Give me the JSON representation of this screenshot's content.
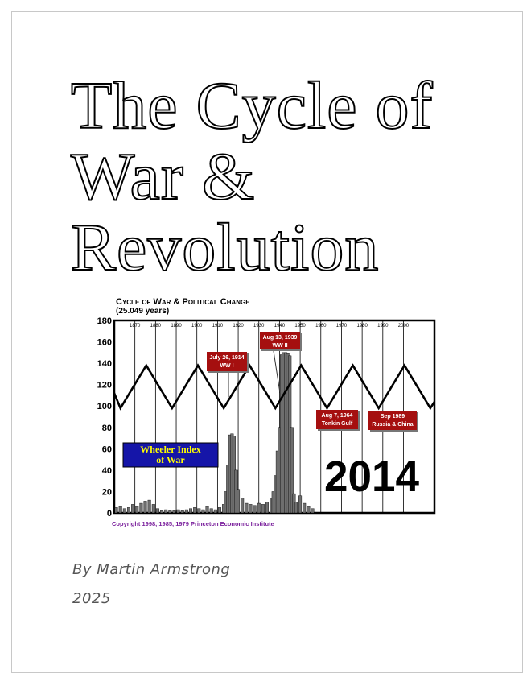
{
  "document": {
    "title_lines": [
      "The Cycle of",
      "War &",
      "Revolution"
    ],
    "author": "By Martin Armstrong",
    "year": "2025"
  },
  "chart_data": {
    "type": "area",
    "title": "Cycle of War & Political Change",
    "subtitle": "(25.049 years)",
    "ylim": [
      0,
      180
    ],
    "y_ticks": [
      0,
      20,
      40,
      60,
      80,
      100,
      120,
      140,
      160,
      180
    ],
    "xlim": [
      1860,
      2015
    ],
    "x_ticks": [
      "1870",
      "1880",
      "1890",
      "1900",
      "1910",
      "1920",
      "1930",
      "1940",
      "1950",
      "1960",
      "1970",
      "1980",
      "1990",
      "2000"
    ],
    "x_tick_years": [
      1870,
      1880,
      1890,
      1900,
      1910,
      1920,
      1930,
      1940,
      1950,
      1960,
      1970,
      1980,
      1990,
      2000
    ],
    "cycle_series": {
      "x": [
        1860,
        1863,
        1875.5,
        1888,
        1900.5,
        1913,
        1925.5,
        1938,
        1950.5,
        1963,
        1975.5,
        1988,
        2000.5,
        2013,
        2015
      ],
      "y": [
        112,
        98,
        138,
        98,
        138,
        98,
        138,
        98,
        138,
        98,
        138,
        98,
        138,
        98,
        104
      ]
    },
    "war_index": {
      "x": [
        1861,
        1863,
        1865,
        1867,
        1869,
        1871,
        1873,
        1875,
        1877,
        1879,
        1881,
        1883,
        1885,
        1887,
        1889,
        1891,
        1893,
        1895,
        1897,
        1899,
        1901,
        1903,
        1905,
        1907,
        1909,
        1911,
        1913,
        1914,
        1915,
        1916,
        1917,
        1918,
        1919,
        1920,
        1922,
        1924,
        1926,
        1928,
        1930,
        1932,
        1934,
        1936,
        1937,
        1938,
        1939,
        1940,
        1941,
        1942,
        1943,
        1944,
        1945,
        1946,
        1947,
        1948,
        1950,
        1952,
        1954,
        1956
      ],
      "values": [
        5,
        6,
        4,
        5,
        8,
        6,
        9,
        11,
        12,
        8,
        4,
        2,
        3,
        2,
        2,
        3,
        2,
        3,
        4,
        5,
        4,
        3,
        6,
        4,
        3,
        5,
        8,
        20,
        45,
        73,
        74,
        72,
        40,
        22,
        14,
        9,
        8,
        7,
        9,
        8,
        10,
        14,
        20,
        35,
        58,
        80,
        148,
        150,
        150,
        149,
        147,
        80,
        18,
        10,
        16,
        9,
        6,
        4
      ]
    },
    "annotations": [
      {
        "line1": "July 26, 1914",
        "line2": "WW I"
      },
      {
        "line1": "Aug 13, 1939",
        "line2": "WW II"
      },
      {
        "line1": "Aug 7, 1964",
        "line2": "Tonkin Gulf"
      },
      {
        "line1": "Sep 1989",
        "line2": "Russia & China"
      }
    ],
    "legend_box": {
      "line1": "Wheeler Index",
      "line2": "of War"
    },
    "big_label": "2014",
    "copyright": "Copyright 1998, 1985, 1979 Princeton Economic Institute",
    "colors": {
      "cycle": "#000000",
      "area": "#6e6e6e",
      "annotation_bg": "#a50f0f",
      "legend_bg": "#1515a8",
      "legend_text": "#ffff00",
      "copyright": "#7a1f9c"
    },
    "grid": true
  }
}
